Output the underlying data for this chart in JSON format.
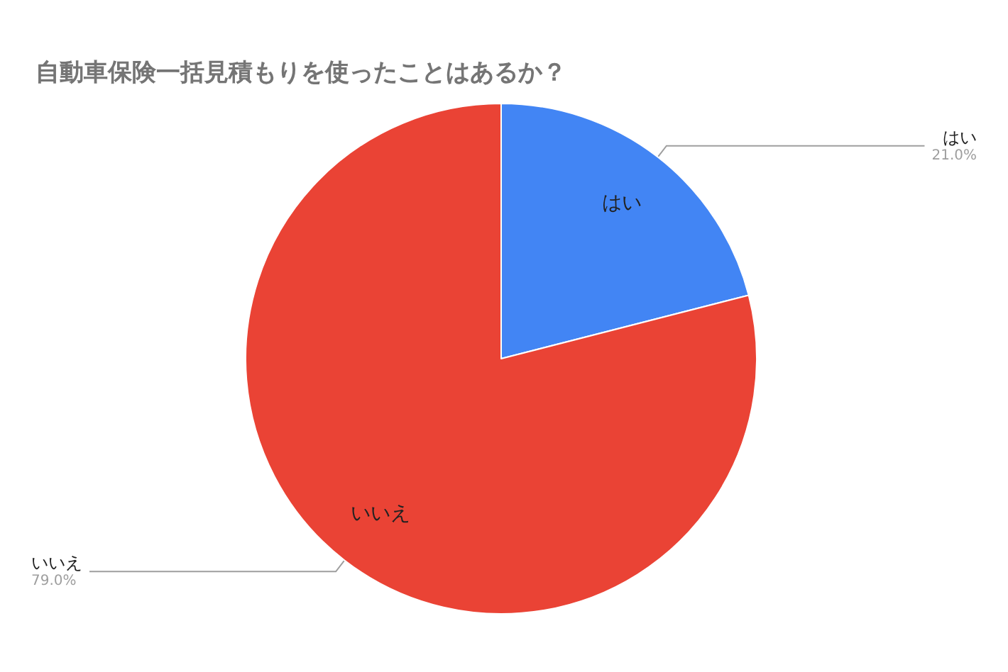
{
  "chart_data": {
    "type": "pie",
    "title": "自動車保険一括見積もりを使ったことはあるか？",
    "categories": [
      "はい",
      "いいえ"
    ],
    "values": [
      21.0,
      79.0
    ],
    "colors": [
      "#4285f4",
      "#ea4335"
    ],
    "value_labels": [
      "21.0%",
      "79.0%"
    ],
    "legend": false
  }
}
